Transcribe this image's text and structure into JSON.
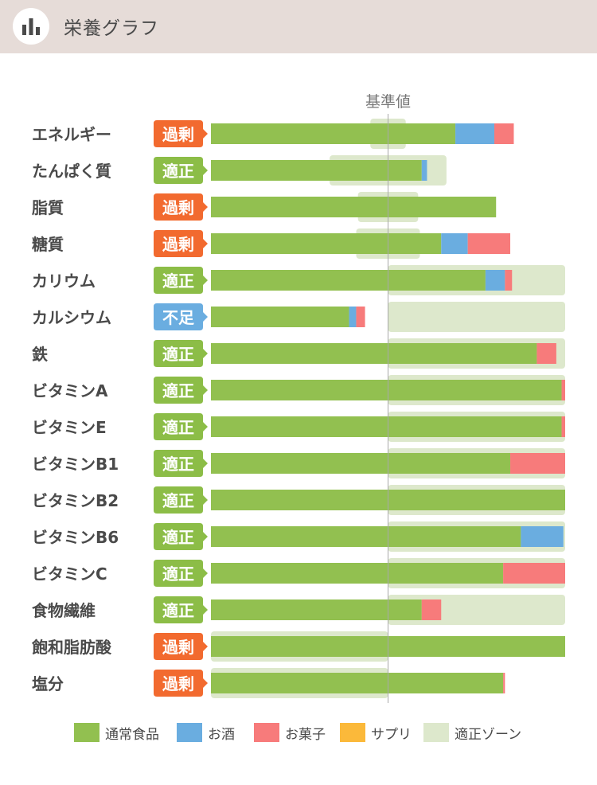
{
  "header": {
    "title": "栄養グラフ",
    "icon": "bar-chart-icon"
  },
  "colors": {
    "normal": "#92c050",
    "alcohol": "#6aade0",
    "snack": "#f77b7b",
    "supplement": "#fbb93a",
    "zone": "#dde8cc",
    "badge_excess": "#f26a2f",
    "badge_ok": "#8cbd47",
    "badge_short": "#6aade0"
  },
  "chart_data": {
    "type": "bar",
    "orientation": "horizontal",
    "stacked": true,
    "title": "栄養グラフ",
    "reference_label": "基準値",
    "reference_value": 1.0,
    "xlim": [
      0,
      2.0
    ],
    "categories": [
      "エネルギー",
      "たんぱく質",
      "脂質",
      "糖質",
      "カリウム",
      "カルシウム",
      "鉄",
      "ビタミンA",
      "ビタミンE",
      "ビタミンB1",
      "ビタミンB2",
      "ビタミンB6",
      "ビタミンC",
      "食物繊維",
      "飽和脂肪酸",
      "塩分"
    ],
    "status": [
      "過剰",
      "適正",
      "過剰",
      "過剰",
      "適正",
      "不足",
      "適正",
      "適正",
      "適正",
      "適正",
      "適正",
      "適正",
      "適正",
      "適正",
      "過剰",
      "過剰"
    ],
    "status_kind": [
      "excess",
      "ok",
      "excess",
      "excess",
      "ok",
      "short",
      "ok",
      "ok",
      "ok",
      "ok",
      "ok",
      "ok",
      "ok",
      "ok",
      "excess",
      "excess"
    ],
    "series": [
      {
        "name": "通常食品",
        "color_key": "normal",
        "values": [
          1.38,
          1.19,
          1.61,
          1.3,
          1.55,
          0.78,
          1.84,
          1.98,
          1.98,
          1.69,
          2.0,
          1.75,
          1.65,
          1.19,
          2.0,
          1.65
        ]
      },
      {
        "name": "お酒",
        "color_key": "alcohol",
        "values": [
          0.22,
          0.03,
          0,
          0.15,
          0.11,
          0.04,
          0,
          0,
          0,
          0,
          0,
          0.24,
          0,
          0,
          0,
          0
        ]
      },
      {
        "name": "お菓子",
        "color_key": "snack",
        "values": [
          0.11,
          0,
          0,
          0.24,
          0.04,
          0.05,
          0.11,
          0.02,
          0.02,
          0.31,
          0,
          0,
          0.35,
          0.11,
          0,
          0.01
        ]
      },
      {
        "name": "サプリ",
        "color_key": "supplement",
        "values": [
          0,
          0,
          0,
          0,
          0,
          0,
          0,
          0,
          0,
          0,
          0,
          0,
          0,
          0,
          0,
          0
        ]
      }
    ],
    "appropriate_zone": [
      [
        0.9,
        1.1
      ],
      [
        0.67,
        1.33
      ],
      [
        0.83,
        1.17
      ],
      [
        0.82,
        1.18
      ],
      [
        1.0,
        2.0
      ],
      [
        1.0,
        2.0
      ],
      [
        1.0,
        2.0
      ],
      [
        1.0,
        2.0
      ],
      [
        1.0,
        2.0
      ],
      [
        1.0,
        2.0
      ],
      [
        1.0,
        2.0
      ],
      [
        1.0,
        2.0
      ],
      [
        1.0,
        2.0
      ],
      [
        1.0,
        2.0
      ],
      [
        0,
        1.0
      ],
      [
        0,
        1.0
      ]
    ]
  },
  "legend": [
    {
      "label": "通常食品",
      "color_key": "normal"
    },
    {
      "label": "お酒",
      "color_key": "alcohol"
    },
    {
      "label": "お菓子",
      "color_key": "snack"
    },
    {
      "label": "サプリ",
      "color_key": "supplement"
    },
    {
      "label": "適正ゾーン",
      "color_key": "zone"
    }
  ]
}
